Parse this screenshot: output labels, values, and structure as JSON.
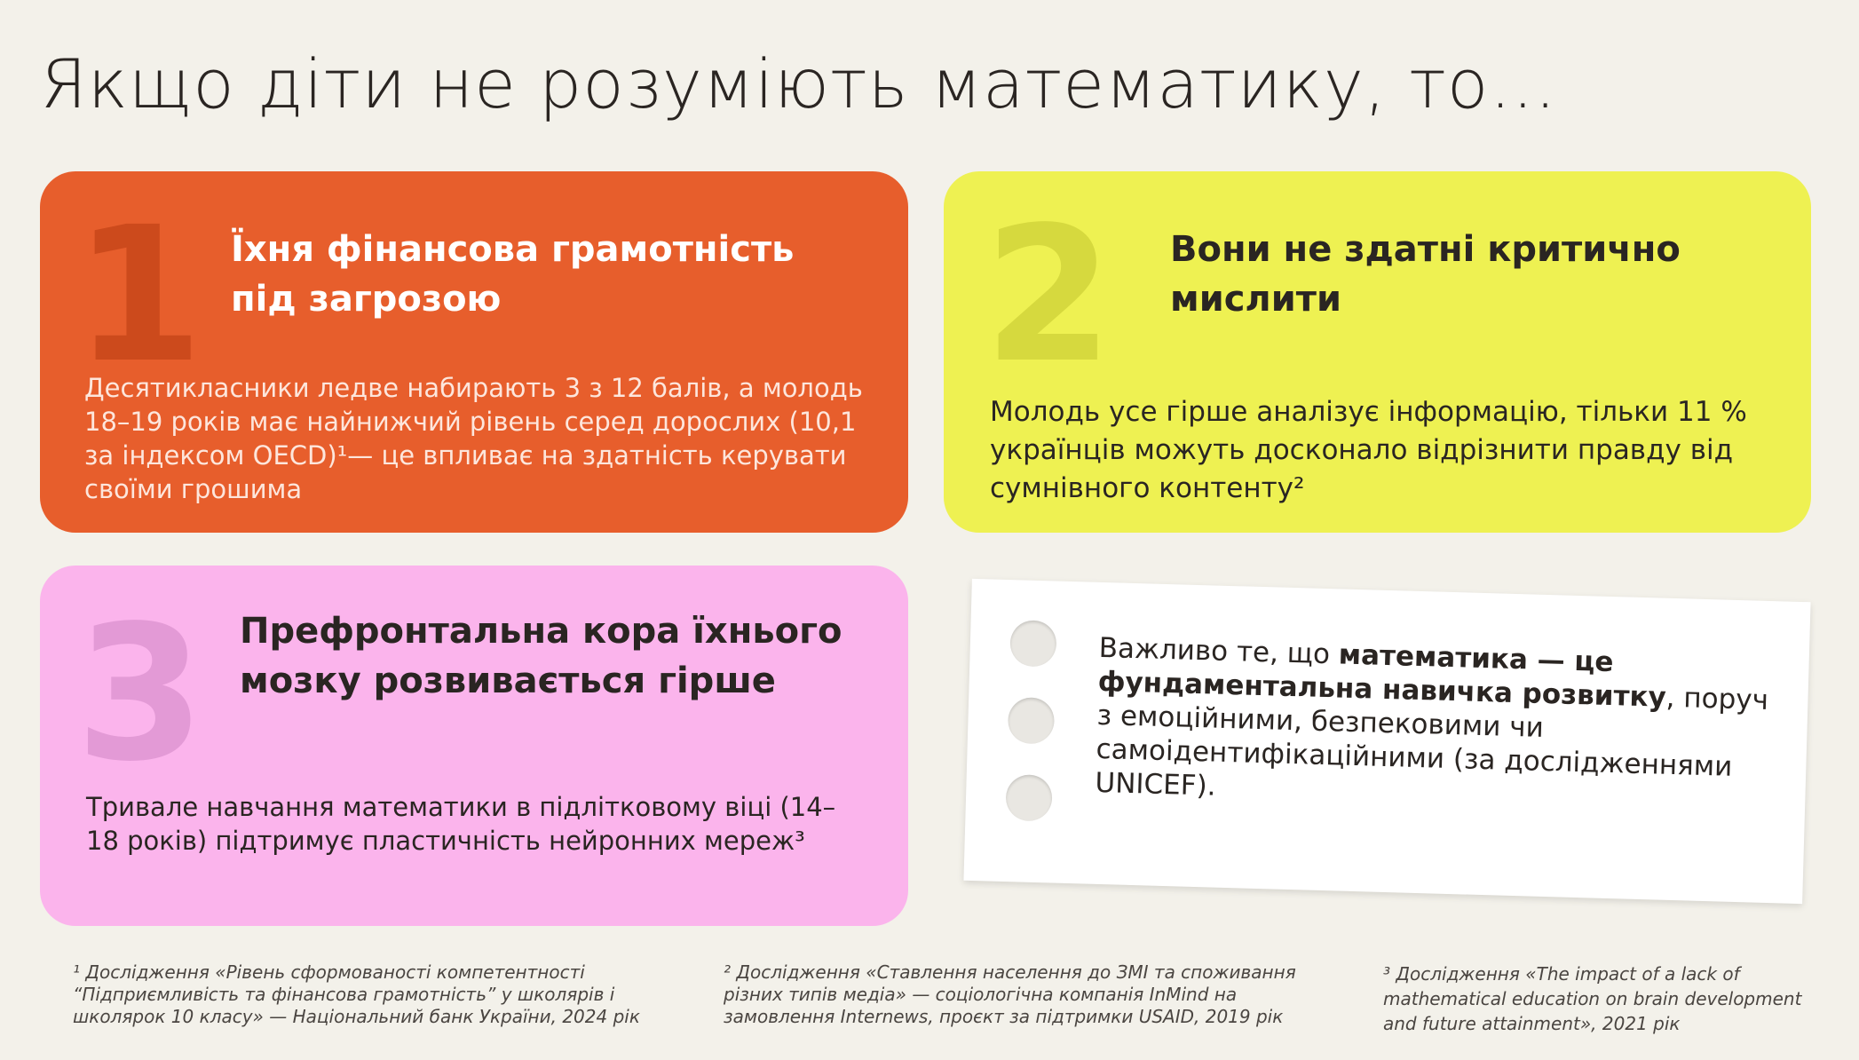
{
  "title": "Якщо діти не розуміють математику, то…",
  "cards": [
    {
      "number": "1",
      "heading": "Їхня фінансова грамотність під загрозою",
      "body": "Десятикласники ледве набирають 3 з 12 балів, а молодь 18–19 років має найнижчий рівень серед дорослих (10,1 за індексом OECD)¹— це впливає на здатність керувати своїми грошима",
      "color": "#e75e2c"
    },
    {
      "number": "2",
      "heading": "Вони не здатні критично мислити",
      "body": "Молодь усе гірше аналізує інформацію, тільки 11 % українців можуть досконало відрізнити правду від сумнівного контенту²",
      "color": "#eef152"
    },
    {
      "number": "3",
      "heading": "Префронтальна кора їхнього мозку розвивається гірше",
      "body": "Тривале навчання математики в підлітковому віці (14–18 років) підтримує пластичність нейронних мереж³",
      "color": "#fbb4ec"
    }
  ],
  "note_card": {
    "before": "Важливо те, що ",
    "bold": "математика — це фундаментальна навичка розвитку",
    "after": ", поруч з емоційними, безпековими чи самоідентифікаційними (за дослідженнями UNICEF)."
  },
  "footnotes": [
    "¹ Дослідження «Рівень сформованості компетентності “Підприємливість та фінансова грамотність” у школярів і школярок 10 класу» — Національний банк України, 2024 рік",
    "² Дослідження «Ставлення населення до ЗМІ та споживання різних типів медіа» — соціологічна компанія InMind на замовлення Internews, проєкт за підтримки USAID, 2019 рік",
    "³ Дослідження «The impact of a lack of mathematical education on brain development and future attainment», 2021 рік"
  ]
}
